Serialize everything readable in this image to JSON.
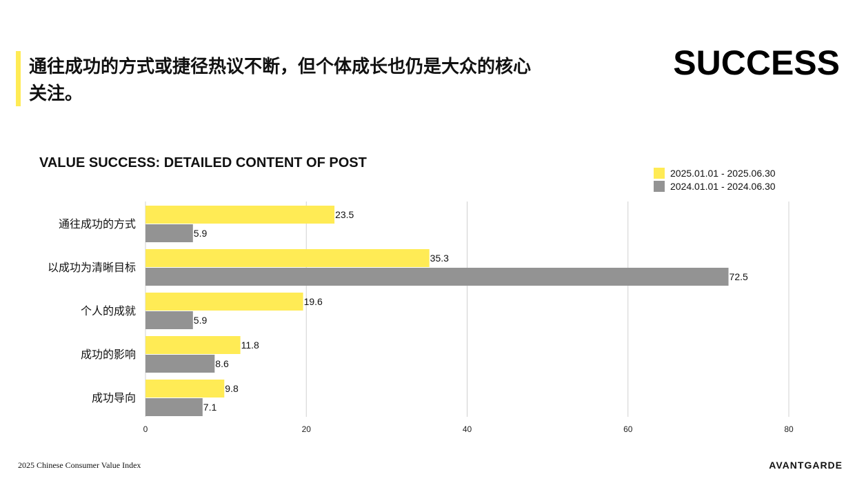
{
  "header": {
    "headline": "通往成功的方式或捷径热议不断，但个体成长也仍是大众的核心关注。",
    "section_title": "SUCCESS"
  },
  "footer": {
    "source": "2025 Chinese Consumer Value Index",
    "brand": "AVANTGARDE"
  },
  "colors": {
    "accent": "#FFEB55",
    "series_2025": "#FFEB55",
    "series_2024": "#939393",
    "gridline": "#D0D0D0"
  },
  "chart_data": {
    "type": "bar",
    "orientation": "horizontal",
    "title": "VALUE SUCCESS: DETAILED CONTENT OF POST",
    "categories": [
      "通往成功的方式",
      "以成功为清晰目标",
      "个人的成就",
      "成功的影响",
      "成功导向"
    ],
    "series": [
      {
        "name": "2025.01.01 - 2025.06.30",
        "color": "#FFEB55",
        "values": [
          23.5,
          35.3,
          19.6,
          11.8,
          9.8
        ]
      },
      {
        "name": "2024.01.01 - 2024.06.30",
        "color": "#939393",
        "values": [
          5.9,
          72.5,
          5.9,
          8.6,
          7.1
        ]
      }
    ],
    "xlim": [
      0,
      80
    ],
    "xticks": [
      0,
      20,
      40,
      60,
      80
    ],
    "grid": true,
    "legend_position": "top-right"
  }
}
